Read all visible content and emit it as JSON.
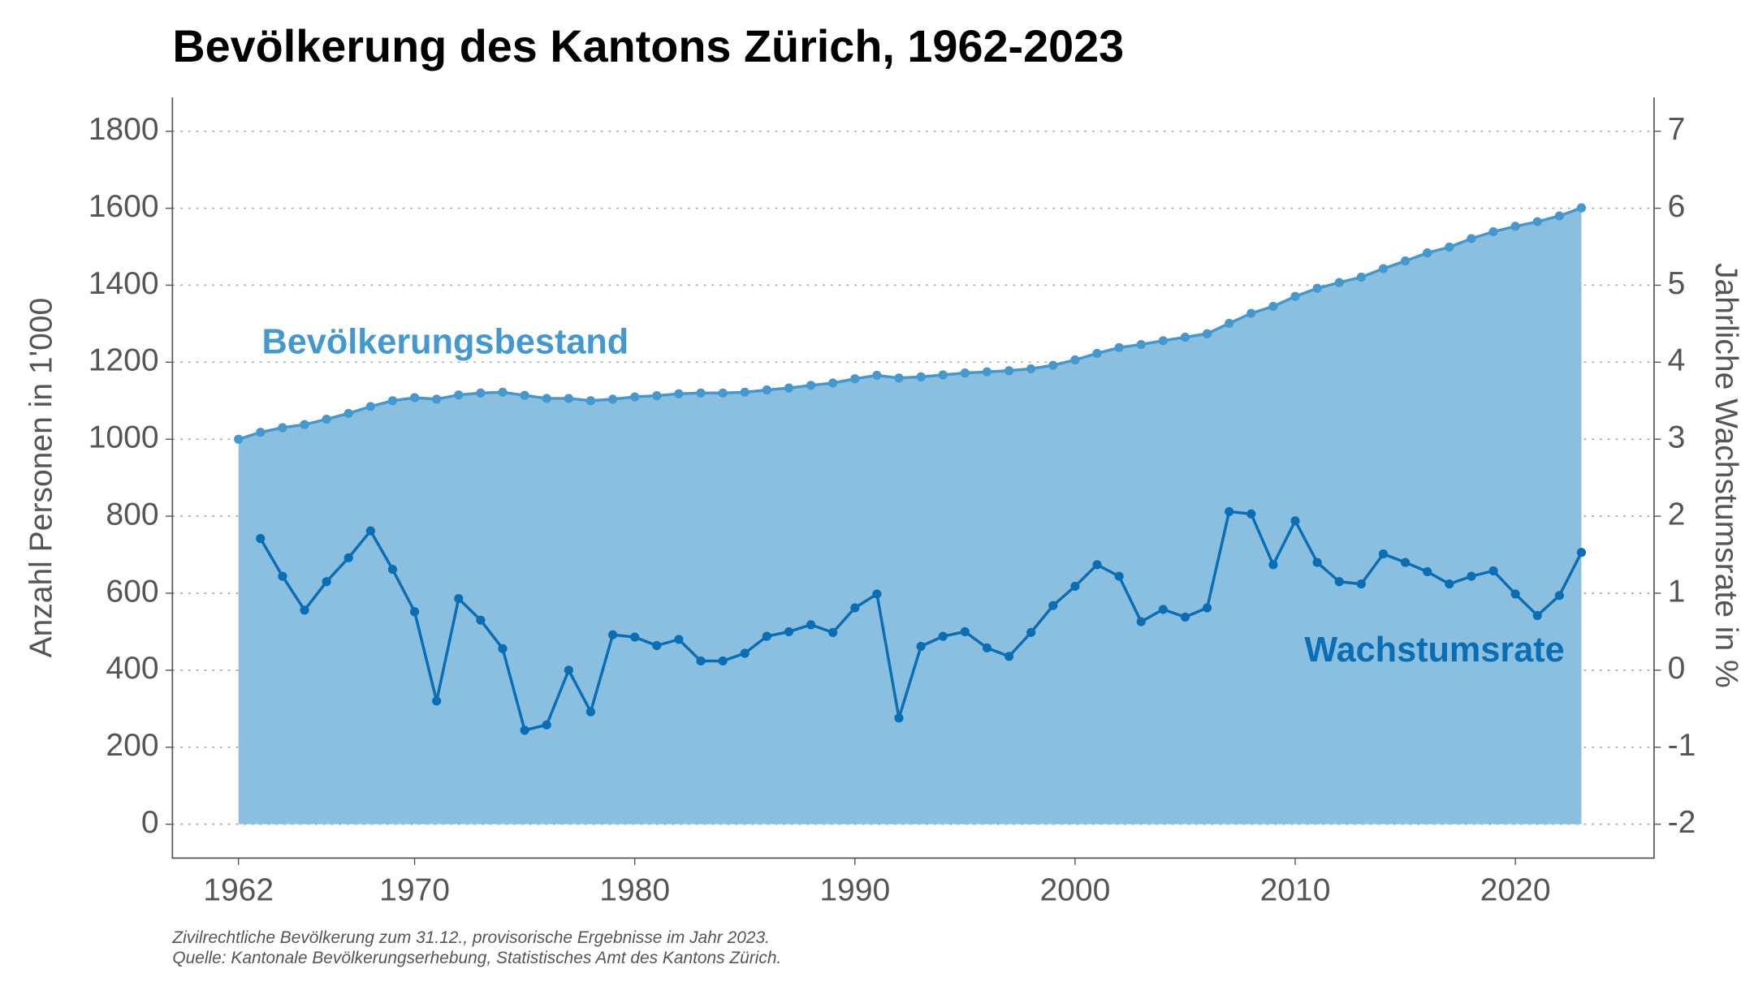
{
  "chart_data": {
    "type": "line",
    "title": "Bevölkerung des Kantons Zürich, 1962-2023",
    "y_label": "Anzahl Personen in 1'000",
    "y2_label": "Jahrliche Wachstumsrate in %",
    "notes": [
      "Zivilrechtliche Bevölkerung zum 31.12., provisorische Ergebnisse im Jahr 2023.",
      "Quelle: Kantonale Bevölkerungserhebung, Statistisches Amt des Kantons Zürich."
    ],
    "x": [
      1962,
      1963,
      1964,
      1965,
      1966,
      1967,
      1968,
      1969,
      1970,
      1971,
      1972,
      1973,
      1974,
      1975,
      1976,
      1977,
      1978,
      1979,
      1980,
      1981,
      1982,
      1983,
      1984,
      1985,
      1986,
      1987,
      1988,
      1989,
      1990,
      1991,
      1992,
      1993,
      1994,
      1995,
      1996,
      1997,
      1998,
      1999,
      2000,
      2001,
      2002,
      2003,
      2004,
      2005,
      2006,
      2007,
      2008,
      2009,
      2010,
      2011,
      2012,
      2013,
      2014,
      2015,
      2016,
      2017,
      2018,
      2019,
      2020,
      2021,
      2022,
      2023
    ],
    "series": [
      {
        "name": "Bevölkerungsbestand",
        "color": "#4398d0",
        "fill": "#8abfe0",
        "axis": "y",
        "values": [
          1000,
          1018,
          1030,
          1038,
          1052,
          1067,
          1085,
          1100,
          1108,
          1104,
          1115,
          1120,
          1122,
          1114,
          1106,
          1106,
          1100,
          1104,
          1110,
          1113,
          1118,
          1120,
          1120,
          1122,
          1128,
          1133,
          1140,
          1146,
          1157,
          1166,
          1159,
          1162,
          1167,
          1172,
          1175,
          1178,
          1183,
          1192,
          1206,
          1223,
          1238,
          1246,
          1256,
          1265,
          1274,
          1301,
          1327,
          1345,
          1371,
          1392,
          1407,
          1421,
          1443,
          1463,
          1484,
          1499,
          1521,
          1539,
          1553,
          1565,
          1580,
          1601
        ]
      },
      {
        "name": "Wachstumsrate",
        "color": "#0a6eb4",
        "axis": "y2",
        "values": [
          null,
          1.71,
          1.22,
          0.78,
          1.15,
          1.46,
          1.81,
          1.31,
          0.76,
          -0.4,
          0.93,
          0.65,
          0.28,
          -0.78,
          -0.71,
          0.0,
          -0.54,
          0.46,
          0.43,
          0.32,
          0.4,
          0.12,
          0.12,
          0.22,
          0.44,
          0.5,
          0.59,
          0.49,
          0.81,
          0.99,
          -0.62,
          0.31,
          0.44,
          0.5,
          0.29,
          0.18,
          0.49,
          0.84,
          1.09,
          1.37,
          1.22,
          0.63,
          0.79,
          0.69,
          0.81,
          2.06,
          2.03,
          1.37,
          1.94,
          1.4,
          1.15,
          1.12,
          1.51,
          1.4,
          1.28,
          1.12,
          1.22,
          1.29,
          0.99,
          0.71,
          0.97,
          1.53
        ]
      }
    ],
    "xlim": [
      1959,
      2026.3
    ],
    "xticks": [
      1962,
      1970,
      1980,
      1990,
      2000,
      2010,
      2020
    ],
    "ylim": [
      -88,
      1888
    ],
    "yticks": [
      0,
      200,
      400,
      600,
      800,
      1000,
      1200,
      1400,
      1600,
      1800
    ],
    "y2lim": [
      -2.44,
      7.44
    ],
    "y2ticks": [
      -2,
      -1,
      0,
      1,
      2,
      3,
      4,
      5,
      6,
      7
    ],
    "grid": true
  }
}
